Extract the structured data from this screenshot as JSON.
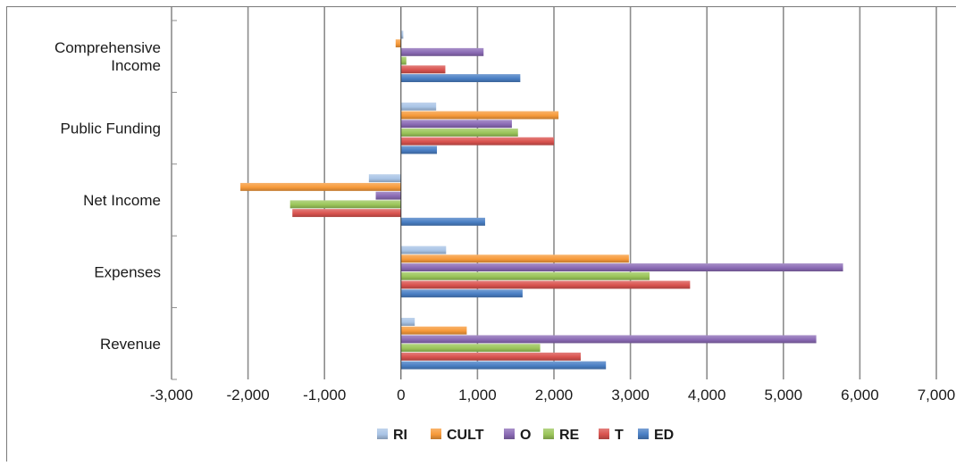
{
  "chart_data": {
    "type": "bar",
    "orientation": "horizontal",
    "categories": [
      "Revenue",
      "Expenses",
      "Net Income",
      "Public Funding",
      "Comprehensive Income"
    ],
    "category_labels": [
      [
        "Revenue"
      ],
      [
        "Expenses"
      ],
      [
        "Net Income"
      ],
      [
        "Public Funding"
      ],
      [
        "Comprehensive",
        "Income"
      ]
    ],
    "series": [
      {
        "name": "ED",
        "color": "#4a7fc4",
        "values": [
          2680,
          1590,
          1100,
          470,
          1560
        ]
      },
      {
        "name": "T",
        "color": "#d9534f",
        "values": [
          2350,
          3780,
          -1420,
          2000,
          580
        ]
      },
      {
        "name": "RE",
        "color": "#9bc55a",
        "values": [
          1820,
          3250,
          -1450,
          1530,
          70
        ]
      },
      {
        "name": "O",
        "color": "#8b6bb5",
        "values": [
          5430,
          5780,
          -330,
          1450,
          1080
        ]
      },
      {
        "name": "CULT",
        "color": "#f79a3a",
        "values": [
          860,
          2980,
          -2100,
          2060,
          -70
        ]
      },
      {
        "name": "RI",
        "color": "#a9c4e6",
        "values": [
          180,
          590,
          -420,
          460,
          30
        ]
      }
    ],
    "xlim": [
      -3000,
      7000
    ],
    "x_ticks": [
      -3000,
      -2000,
      -1000,
      0,
      1000,
      2000,
      3000,
      4000,
      5000,
      6000,
      7000
    ],
    "x_tick_labels": [
      "-3,000",
      "-2,000",
      "-1,000",
      "0",
      "1,000",
      "2,000",
      "3,000",
      "4,000",
      "5,000",
      "6,000",
      "7,000"
    ],
    "legend_order": [
      "RI",
      "CULT",
      "O",
      "RE",
      "T",
      "ED"
    ],
    "legend_position": "bottom",
    "grid": true
  }
}
